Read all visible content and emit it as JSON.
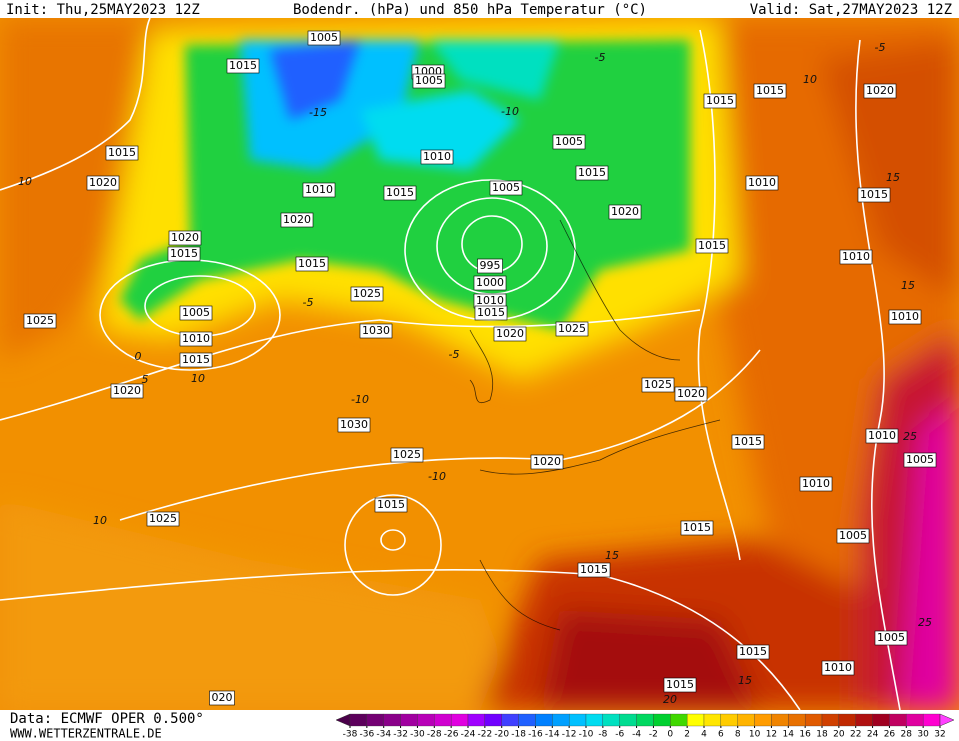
{
  "header": {
    "init": "Init: Thu,25MAY2023 12Z",
    "title": "Bodendr. (hPa) und 850 hPa Temperatur (°C)",
    "valid": "Valid: Sat,27MAY2023 12Z"
  },
  "footer": {
    "data_source": "Data: ECMWF OPER 0.500°",
    "website": "WWW.WETTERZENTRALE.DE"
  },
  "isobar_labels": [
    "1005",
    "1015",
    "1000",
    "1005",
    "1015",
    "1015",
    "1020",
    "1015",
    "1005",
    "1010",
    "1020",
    "1015",
    "1010",
    "1010",
    "1015",
    "1005",
    "1015",
    "1020",
    "1020",
    "1020",
    "1015",
    "1015",
    "995",
    "1010",
    "1015",
    "1000",
    "1025",
    "1010",
    "1015",
    "1025",
    "1005",
    "1010",
    "1030",
    "1020",
    "1025",
    "1010",
    "1015",
    "1025",
    "1020",
    "1020",
    "1030",
    "1010",
    "1015",
    "1025",
    "1005",
    "1020",
    "1010",
    "1015",
    "1025",
    "1015",
    "1005",
    "1015",
    "1015",
    "1005",
    "1010",
    "1015",
    "020"
  ],
  "temperature_labels": [
    "-10",
    "-15",
    "-5",
    "-5",
    "10",
    "10",
    "5",
    "0",
    "-5",
    "10",
    "10",
    "-10",
    "-5",
    "-10",
    "15",
    "15",
    "25",
    "20",
    "15",
    "25",
    "15"
  ],
  "colorbar": {
    "ticks": [
      -38,
      -36,
      -34,
      -32,
      -30,
      -28,
      -26,
      -24,
      -22,
      -20,
      -18,
      -16,
      -14,
      -12,
      -10,
      -8,
      -6,
      -4,
      -2,
      0,
      2,
      4,
      6,
      8,
      10,
      12,
      14,
      16,
      18,
      20,
      22,
      24,
      26,
      28,
      30,
      32
    ],
    "colors": [
      "#4a004a",
      "#5c005c",
      "#730073",
      "#8a008a",
      "#a000a0",
      "#b800b8",
      "#d000d0",
      "#e000e0",
      "#a000ff",
      "#7000ff",
      "#4040ff",
      "#2060ff",
      "#0080ff",
      "#00a0ff",
      "#00c0ff",
      "#00dcf0",
      "#00e0c0",
      "#00dc90",
      "#00d860",
      "#00d030",
      "#40d800",
      "#ffff00",
      "#ffe600",
      "#ffcc00",
      "#ffb400",
      "#ff9c00",
      "#f08400",
      "#e87000",
      "#e05a00",
      "#d04000",
      "#c02800",
      "#b01010",
      "#a00020",
      "#c00060",
      "#e000a0",
      "#ff00d0",
      "#ff40ff"
    ]
  }
}
